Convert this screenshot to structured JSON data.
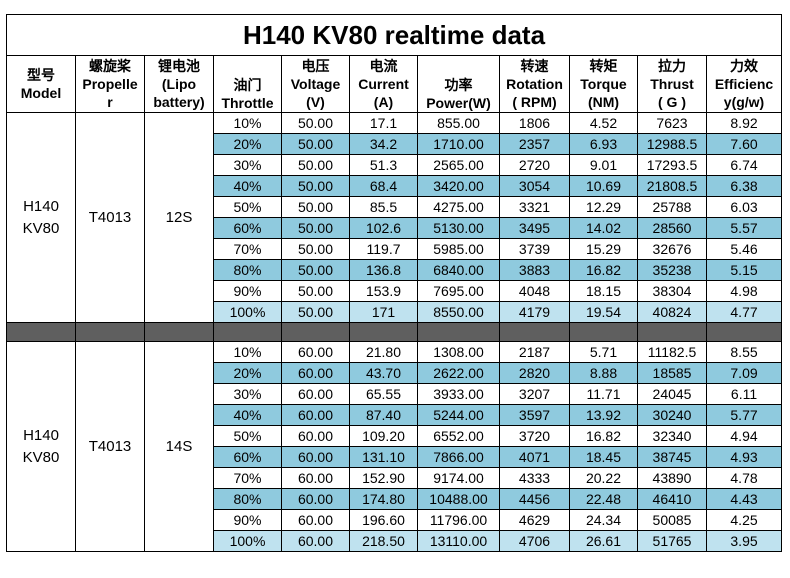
{
  "title": "H140 KV80 realtime data",
  "headers": [
    [
      "型号",
      "Model"
    ],
    [
      "螺旋桨",
      "Propeller"
    ],
    [
      "锂电池",
      "(Lipo battery)"
    ],
    [
      "油门",
      "Throttle"
    ],
    [
      "电压",
      "Voltage",
      "(V)"
    ],
    [
      "电流",
      "Current",
      "(A)"
    ],
    [
      "功率",
      "Power(W)"
    ],
    [
      "转速",
      "Rotation",
      "( RPM)"
    ],
    [
      "转矩",
      "Torque",
      "(NM)"
    ],
    [
      "拉力",
      "Thrust",
      "( G )"
    ],
    [
      "力效",
      "Efficiency(g/w)"
    ]
  ],
  "header_text": {
    "model_cn": "型号",
    "model_en": "Model",
    "prop_cn": "螺旋桨",
    "prop_en1": "Propelle",
    "prop_en2": "r",
    "batt_cn": "锂电池",
    "batt_en1": "(Lipo",
    "batt_en2": "battery)",
    "throttle_cn": "油门",
    "throttle_en": "Throttle",
    "voltage_cn": "电压",
    "voltage_en": "Voltage",
    "voltage_unit": "(V)",
    "current_cn": "电流",
    "current_en": "Current",
    "current_unit": "(A)",
    "power_cn": "功率",
    "power_en": "Power(W)",
    "rotation_cn": "转速",
    "rotation_en": "Rotation",
    "rotation_unit": "( RPM)",
    "torque_cn": "转矩",
    "torque_en": "Torque",
    "torque_unit": "(NM)",
    "thrust_cn": "拉力",
    "thrust_en": "Thrust",
    "thrust_unit": "( G )",
    "eff_cn": "力效",
    "eff_en1": "Efficienc",
    "eff_en2": "y(g/w)"
  },
  "groups": [
    {
      "model_line1": "H140",
      "model_line2": "KV80",
      "propeller": "T4013",
      "battery": "12S",
      "rows": [
        [
          "10%",
          "50.00",
          "17.1",
          "855.00",
          "1806",
          "4.52",
          "7623",
          "8.92"
        ],
        [
          "20%",
          "50.00",
          "34.2",
          "1710.00",
          "2357",
          "6.93",
          "12988.5",
          "7.60"
        ],
        [
          "30%",
          "50.00",
          "51.3",
          "2565.00",
          "2720",
          "9.01",
          "17293.5",
          "6.74"
        ],
        [
          "40%",
          "50.00",
          "68.4",
          "3420.00",
          "3054",
          "10.69",
          "21808.5",
          "6.38"
        ],
        [
          "50%",
          "50.00",
          "85.5",
          "4275.00",
          "3321",
          "12.29",
          "25788",
          "6.03"
        ],
        [
          "60%",
          "50.00",
          "102.6",
          "5130.00",
          "3495",
          "14.02",
          "28560",
          "5.57"
        ],
        [
          "70%",
          "50.00",
          "119.7",
          "5985.00",
          "3739",
          "15.29",
          "32676",
          "5.46"
        ],
        [
          "80%",
          "50.00",
          "136.8",
          "6840.00",
          "3883",
          "16.82",
          "35238",
          "5.15"
        ],
        [
          "90%",
          "50.00",
          "153.9",
          "7695.00",
          "4048",
          "18.15",
          "38304",
          "4.98"
        ],
        [
          "100%",
          "50.00",
          "171",
          "8550.00",
          "4179",
          "19.54",
          "40824",
          "4.77"
        ]
      ]
    },
    {
      "model_line1": "H140",
      "model_line2": "KV80",
      "propeller": "T4013",
      "battery": "14S",
      "rows": [
        [
          "10%",
          "60.00",
          "21.80",
          "1308.00",
          "2187",
          "5.71",
          "11182.5",
          "8.55"
        ],
        [
          "20%",
          "60.00",
          "43.70",
          "2622.00",
          "2820",
          "8.88",
          "18585",
          "7.09"
        ],
        [
          "30%",
          "60.00",
          "65.55",
          "3933.00",
          "3207",
          "11.71",
          "24045",
          "6.11"
        ],
        [
          "40%",
          "60.00",
          "87.40",
          "5244.00",
          "3597",
          "13.92",
          "30240",
          "5.77"
        ],
        [
          "50%",
          "60.00",
          "109.20",
          "6552.00",
          "3720",
          "16.82",
          "32340",
          "4.94"
        ],
        [
          "60%",
          "60.00",
          "131.10",
          "7866.00",
          "4071",
          "18.45",
          "38745",
          "4.93"
        ],
        [
          "70%",
          "60.00",
          "152.90",
          "9174.00",
          "4333",
          "20.22",
          "43890",
          "4.78"
        ],
        [
          "80%",
          "60.00",
          "174.80",
          "10488.00",
          "4456",
          "22.48",
          "46410",
          "4.43"
        ],
        [
          "90%",
          "60.00",
          "196.60",
          "11796.00",
          "4629",
          "24.34",
          "50085",
          "4.25"
        ],
        [
          "100%",
          "60.00",
          "218.50",
          "13110.00",
          "4706",
          "26.61",
          "51765",
          "3.95"
        ]
      ]
    }
  ],
  "colors": {
    "alt_row": "#8fcade",
    "last_row": "#bfe2ef",
    "separator": "#5f5f5f"
  }
}
